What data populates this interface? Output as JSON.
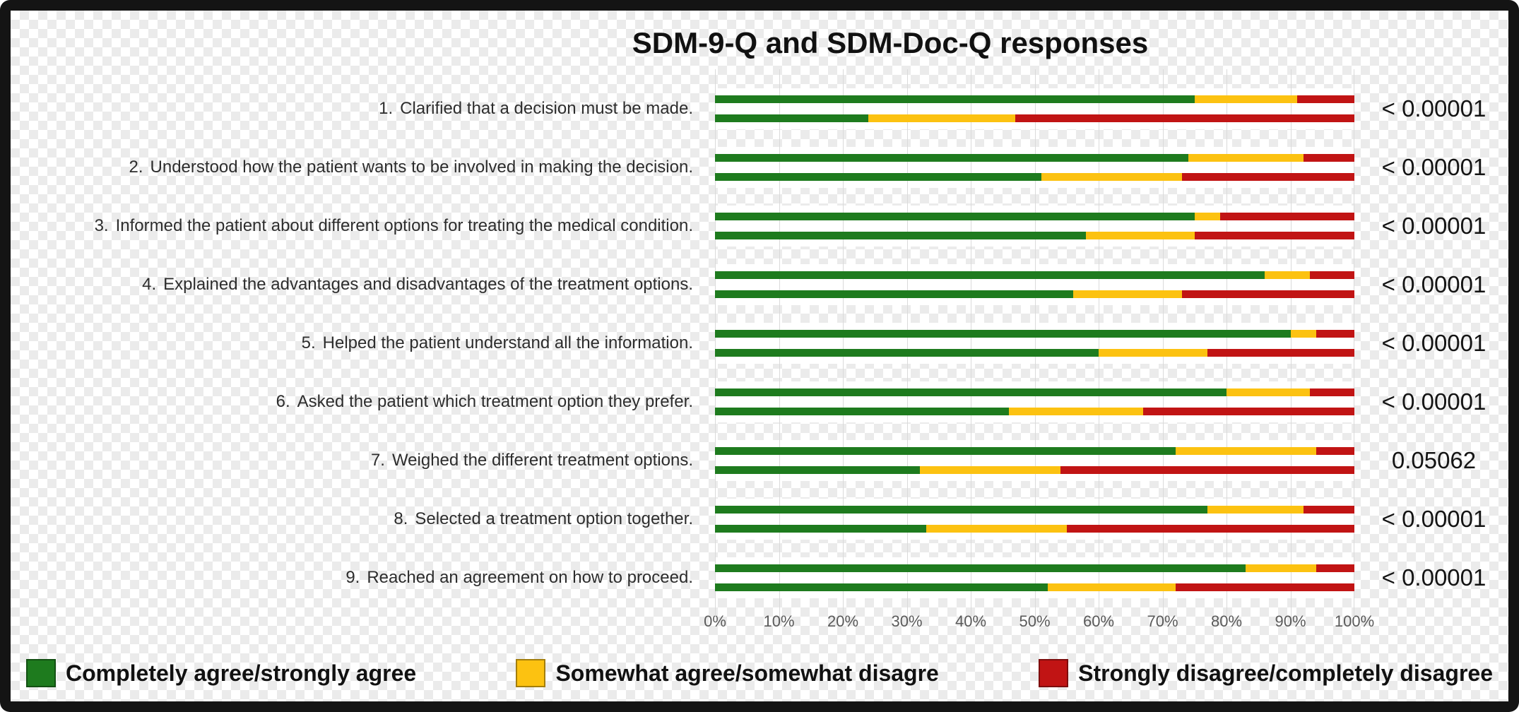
{
  "title": "SDM-9-Q and SDM-Doc-Q responses",
  "legend": [
    {
      "label": "Completely agree/strongly agree",
      "color": "#1e7b1e"
    },
    {
      "label": "Somewhat agree/somewhat disagre",
      "color": "#fcc211"
    },
    {
      "label": "Strongly disagree/completely disagree",
      "color": "#c11414"
    }
  ],
  "chart_data": {
    "type": "bar",
    "orientation": "horizontal",
    "stacked": true,
    "title": "SDM-9-Q and SDM-Doc-Q responses",
    "value_unit": "percent",
    "xlim": [
      0,
      100
    ],
    "x_ticks": [
      "0%",
      "10%",
      "20%",
      "30%",
      "40%",
      "50%",
      "60%",
      "70%",
      "80%",
      "90%",
      "100%"
    ],
    "grid": true,
    "legend_position": "bottom",
    "segment_categories": [
      "Completely agree/strongly agree",
      "Somewhat agree/somewhat disagre",
      "Strongly disagree/completely disagree"
    ],
    "segment_colors": [
      "#1e7b1e",
      "#fcc211",
      "#c11414"
    ],
    "bars_per_question": [
      "SDM-9-Q",
      "SDM-Doc-Q"
    ],
    "questions": [
      {
        "num": "1.",
        "text": "Clarified that a decision must be made.",
        "sdm9q": [
          75,
          16,
          9
        ],
        "sdmdocq": [
          24,
          23,
          53
        ],
        "p_value": "< 0.00001"
      },
      {
        "num": "2.",
        "text": "Understood how the patient wants to be involved in making the decision.",
        "sdm9q": [
          74,
          18,
          8
        ],
        "sdmdocq": [
          51,
          22,
          27
        ],
        "p_value": "< 0.00001"
      },
      {
        "num": "3.",
        "text": "Informed the patient about different options for treating the medical condition.",
        "sdm9q": [
          75,
          4,
          21
        ],
        "sdmdocq": [
          58,
          17,
          25
        ],
        "p_value": "< 0.00001"
      },
      {
        "num": "4.",
        "text": "Explained the advantages and disadvantages of the treatment options.",
        "sdm9q": [
          86,
          7,
          7
        ],
        "sdmdocq": [
          56,
          17,
          27
        ],
        "p_value": "< 0.00001"
      },
      {
        "num": "5.",
        "text": "Helped the patient understand all the information.",
        "sdm9q": [
          90,
          4,
          6
        ],
        "sdmdocq": [
          60,
          17,
          23
        ],
        "p_value": "< 0.00001"
      },
      {
        "num": "6.",
        "text": "Asked the patient which treatment option they prefer.",
        "sdm9q": [
          80,
          13,
          7
        ],
        "sdmdocq": [
          46,
          21,
          33
        ],
        "p_value": "< 0.00001"
      },
      {
        "num": "7.",
        "text": "Weighed the different treatment options.",
        "sdm9q": [
          72,
          22,
          6
        ],
        "sdmdocq": [
          32,
          22,
          46
        ],
        "p_value": "0.05062"
      },
      {
        "num": "8.",
        "text": "Selected a treatment option together.",
        "sdm9q": [
          77,
          15,
          8
        ],
        "sdmdocq": [
          33,
          22,
          45
        ],
        "p_value": "< 0.00001"
      },
      {
        "num": "9.",
        "text": "Reached an agreement on how to proceed.",
        "sdm9q": [
          83,
          11,
          6
        ],
        "sdmdocq": [
          52,
          20,
          28
        ],
        "p_value": "< 0.00001"
      }
    ]
  }
}
